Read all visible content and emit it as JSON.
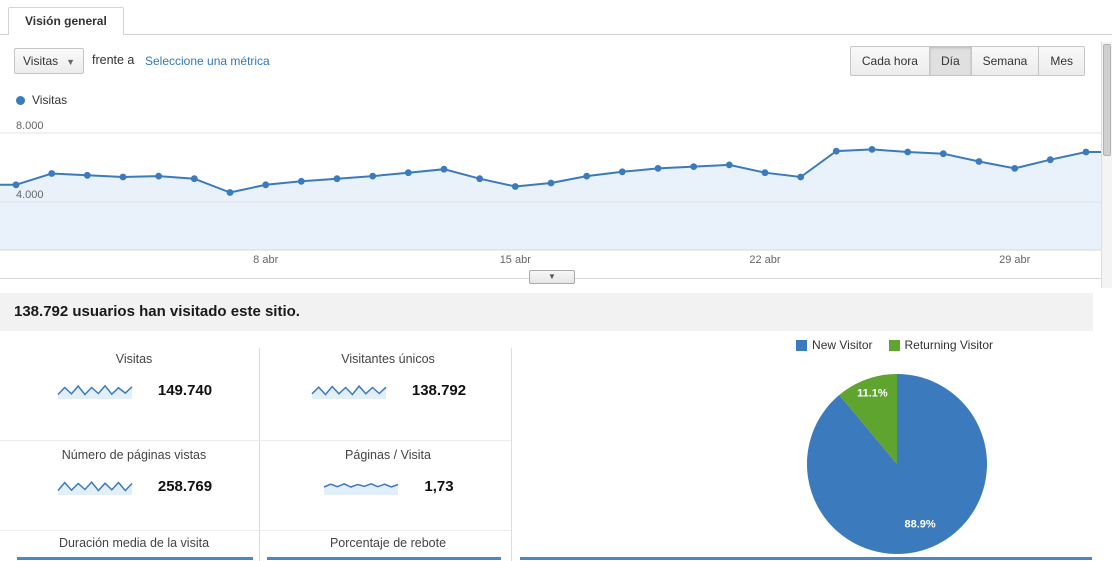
{
  "tab": {
    "label": "Visión general"
  },
  "toolbar": {
    "metric_dropdown": {
      "value": "Visitas"
    },
    "compare_text": "frente a",
    "select_metric_link": "Seleccione una métrica",
    "granularity": [
      {
        "label": "Cada hora",
        "active": false
      },
      {
        "label": "Día",
        "active": true
      },
      {
        "label": "Semana",
        "active": false
      },
      {
        "label": "Mes",
        "active": false
      }
    ]
  },
  "chart_legend": {
    "label": "Visitas",
    "color": "#3b7abd"
  },
  "chart_data": [
    {
      "type": "area",
      "title": "Visitas",
      "x": [
        "1 abr",
        "2 abr",
        "3 abr",
        "4 abr",
        "5 abr",
        "6 abr",
        "7 abr",
        "8 abr",
        "9 abr",
        "10 abr",
        "11 abr",
        "12 abr",
        "13 abr",
        "14 abr",
        "15 abr",
        "16 abr",
        "17 abr",
        "18 abr",
        "19 abr",
        "20 abr",
        "21 abr",
        "22 abr",
        "23 abr",
        "24 abr",
        "25 abr",
        "26 abr",
        "27 abr",
        "28 abr",
        "29 abr",
        "30 abr",
        "1 may"
      ],
      "values": [
        5000,
        5650,
        5550,
        5450,
        5500,
        5350,
        4550,
        5000,
        5200,
        5350,
        5500,
        5700,
        5900,
        5350,
        4900,
        5100,
        5500,
        5750,
        5950,
        6050,
        6150,
        5700,
        5450,
        6950,
        7050,
        6900,
        6800,
        6350,
        5950,
        6450,
        6900
      ],
      "ylim": [
        0,
        8000
      ],
      "yticks": [
        4000,
        8000
      ],
      "ytick_labels": [
        "4.000",
        "8.000"
      ],
      "xtick_indices": [
        7,
        14,
        21,
        28
      ],
      "xtick_labels": [
        "8 abr",
        "15 abr",
        "22 abr",
        "29 abr"
      ],
      "grid": true,
      "line_color": "#3b7abd",
      "fill_color": "#e9f2fa"
    },
    {
      "type": "pie",
      "labels": [
        "New Visitor",
        "Returning Visitor"
      ],
      "values": [
        88.9,
        11.1
      ],
      "value_labels": [
        "88.9%",
        "11.1%"
      ],
      "colors": [
        "#3b7abd",
        "#5fa42f"
      ],
      "legend_position": "top-right"
    }
  ],
  "summary": {
    "text": "138.792 usuarios han visitado este sitio."
  },
  "metrics": [
    {
      "label": "Visitas",
      "value": "149.740",
      "spark": [
        5,
        7,
        5.2,
        7.4,
        5,
        7,
        5.3,
        7.5,
        5.1,
        6.9,
        5.4,
        7.2
      ]
    },
    {
      "label": "Visitantes únicos",
      "value": "138.792",
      "spark": [
        5.2,
        7.1,
        5,
        7.3,
        5.2,
        7,
        5,
        7.4,
        5.2,
        7,
        5.3,
        7.1
      ]
    },
    {
      "label": "Número de páginas vistas",
      "value": "258.769",
      "spark": [
        5,
        7.3,
        5.1,
        7,
        5.3,
        7.4,
        5,
        7.1,
        5.2,
        7.3,
        5,
        7
      ]
    },
    {
      "label": "Páginas / Visita",
      "value": "1,73",
      "spark": [
        6,
        6.8,
        6.1,
        6.9,
        6,
        6.7,
        6.2,
        6.9,
        6.1,
        6.8,
        6,
        6.7
      ]
    },
    {
      "label": "Duración media de la visita",
      "value": "",
      "spark": []
    },
    {
      "label": "Porcentaje de rebote",
      "value": "",
      "spark": []
    }
  ],
  "pie_legend": [
    {
      "label": "New Visitor",
      "color": "#3b7abd"
    },
    {
      "label": "Returning Visitor",
      "color": "#5fa42f"
    }
  ]
}
